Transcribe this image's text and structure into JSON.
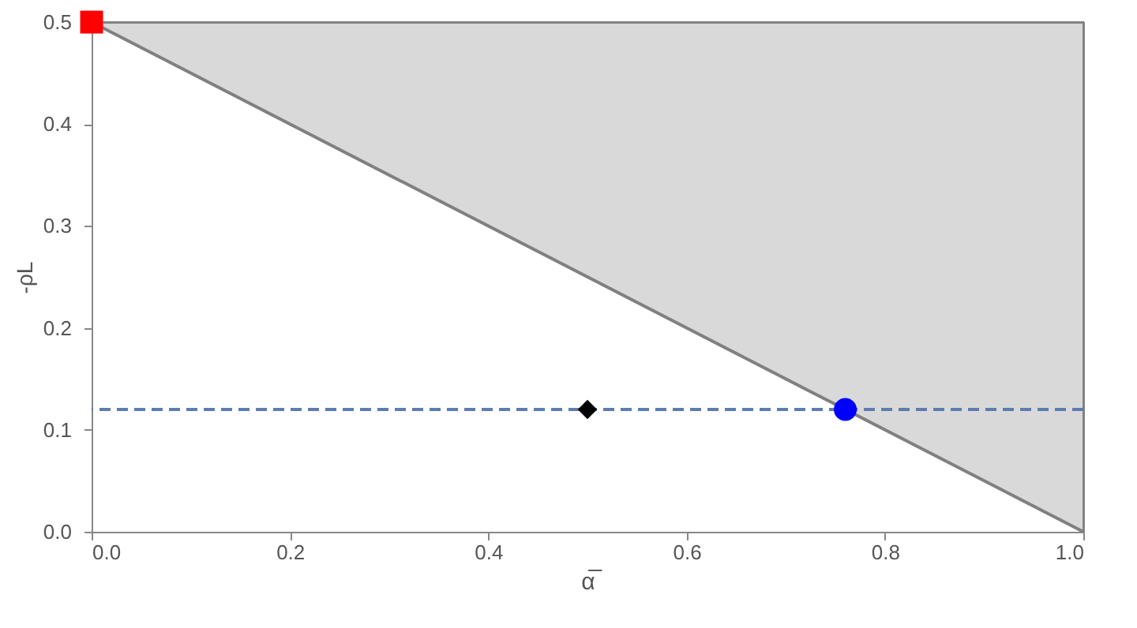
{
  "chart_data": {
    "type": "area",
    "xlabel": "α̅",
    "ylabel": "-ρL",
    "xlim": [
      0,
      1
    ],
    "ylim": [
      0,
      0.5
    ],
    "xticks": [
      {
        "value": 0,
        "label": "0.0"
      },
      0.2,
      0.4,
      0.6,
      0.8,
      {
        "value": 1,
        "label": "1.0"
      }
    ],
    "yticks": [
      {
        "value": 0,
        "label": "0.0"
      },
      0.1,
      0.2,
      0.3,
      0.4,
      0.5
    ],
    "grid": false,
    "series": [
      {
        "color": "#808080",
        "x": [
          0,
          1
        ],
        "values": [
          0.5,
          0
        ]
      },
      {
        "type": "scatter",
        "color": "#ff0000",
        "marker": "square",
        "x": [
          0
        ],
        "values": [
          0.5
        ]
      },
      {
        "type": "scatter",
        "color": "#000000",
        "marker": "diamond",
        "x": [
          0.5
        ],
        "values": [
          0.12
        ]
      },
      {
        "type": "scatter",
        "color": "#0000ff",
        "marker": "circle",
        "x": [
          0.76
        ],
        "values": [
          0.12
        ]
      }
    ],
    "ref_lines": [
      {
        "axis": "y",
        "value": 0.12,
        "color": "#5b7db1",
        "line_style": "dashed"
      }
    ]
  }
}
